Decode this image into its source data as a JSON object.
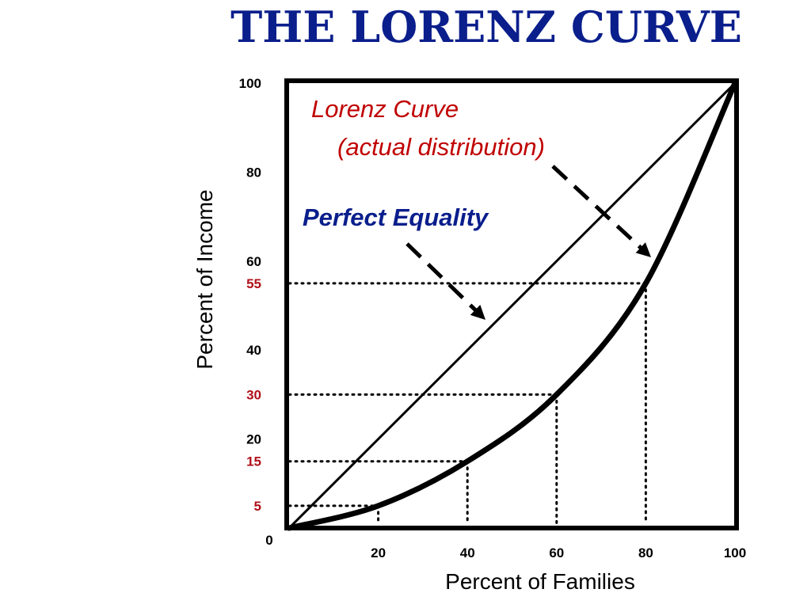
{
  "title": "THE LORENZ CURVE",
  "chart_data": {
    "type": "line",
    "title": "THE LORENZ CURVE",
    "xlabel": "Percent of Families",
    "ylabel": "Percent of Income",
    "xlim": [
      0,
      100
    ],
    "ylim": [
      0,
      100
    ],
    "grid": false,
    "x_ticks": [
      "20",
      "40",
      "60",
      "80",
      "100"
    ],
    "x_origin_label": "0",
    "y_ticks": [
      {
        "value": 100,
        "label": "100",
        "highlight": false
      },
      {
        "value": 80,
        "label": "80",
        "highlight": false
      },
      {
        "value": 60,
        "label": "60",
        "highlight": false
      },
      {
        "value": 55,
        "label": "55",
        "highlight": true
      },
      {
        "value": 40,
        "label": "40",
        "highlight": false
      },
      {
        "value": 30,
        "label": "30",
        "highlight": true
      },
      {
        "value": 20,
        "label": "20",
        "highlight": false
      },
      {
        "value": 15,
        "label": "15",
        "highlight": true
      },
      {
        "value": 5,
        "label": "5",
        "highlight": true
      }
    ],
    "series": [
      {
        "key": "equality",
        "x": [
          0,
          100
        ],
        "y": [
          0,
          100
        ]
      },
      {
        "key": "lorenz",
        "x": [
          0,
          20,
          40,
          60,
          80,
          100
        ],
        "y": [
          0,
          5,
          15,
          30,
          55,
          100
        ]
      }
    ],
    "reference_points": [
      {
        "x": 20,
        "y": 5
      },
      {
        "x": 40,
        "y": 15
      },
      {
        "x": 60,
        "y": 30
      },
      {
        "x": 80,
        "y": 55
      }
    ],
    "annotations": {
      "lorenz_line1": "Lorenz Curve",
      "lorenz_line2": "(actual distribution)",
      "equality": "Perfect Equality"
    },
    "colors": {
      "title": "#0a1e8c",
      "lorenz_label": "#c00000",
      "equality_label": "#0a1e8c",
      "highlight_tick": "#b0101a",
      "lines": "#000000"
    }
  }
}
